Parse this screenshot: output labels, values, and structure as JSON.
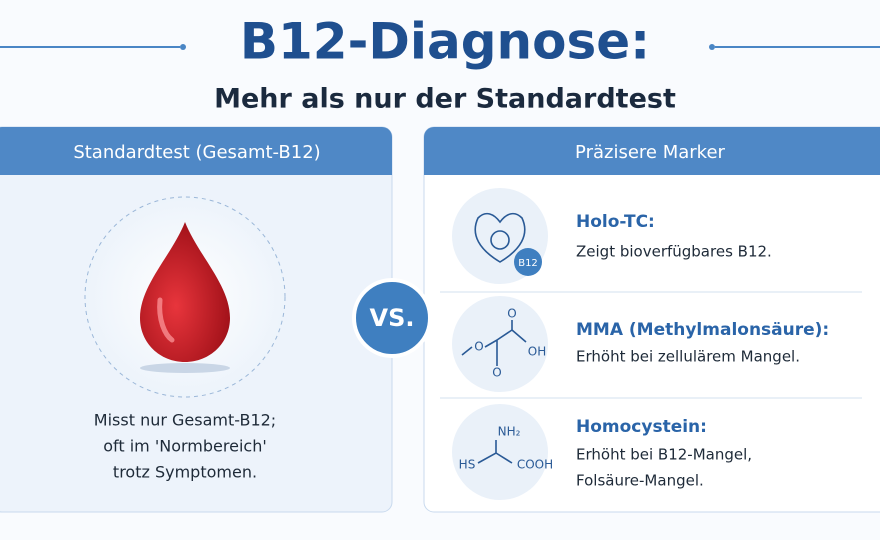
{
  "header": {
    "title": "B12-Diagnose:",
    "subtitle": "Mehr als nur der Standardtest"
  },
  "left_panel": {
    "title": "Standardtest (Gesamt-B12)",
    "description": [
      "Misst nur Gesamt-B12;",
      "oft im 'Normbereich'",
      "trotz Symptomen."
    ]
  },
  "divider": "VS.",
  "right_panel": {
    "title": "Präzisere Marker",
    "markers": [
      {
        "name": "Holo-TC:",
        "description": [
          "Zeigt bioverfügbares B12."
        ],
        "icon_labels": [
          "B12"
        ]
      },
      {
        "name": "MMA (Methylmalonsäure):",
        "description": [
          "Erhöht bei zellulärem Mangel."
        ],
        "icon_labels": [
          "O",
          "O",
          "OH",
          "O"
        ]
      },
      {
        "name": "Homocystein:",
        "description": [
          "Erhöht bei B12-Mangel,",
          "Folsäure-Mangel."
        ],
        "icon_labels": [
          "NH₂",
          "HS",
          "COOH"
        ]
      }
    ]
  }
}
